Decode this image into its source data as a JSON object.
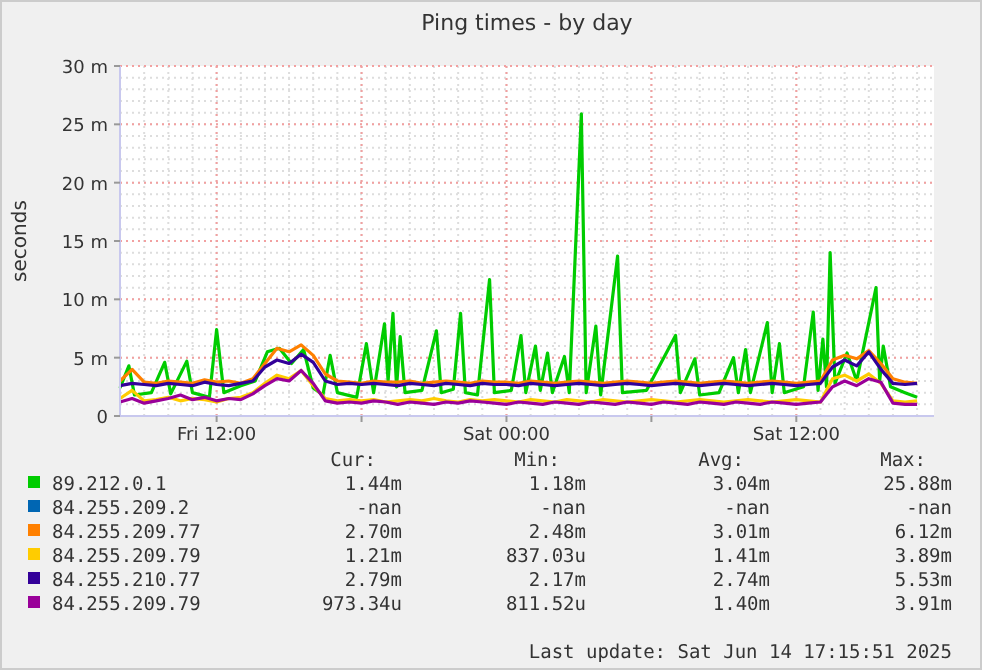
{
  "chart_data": {
    "type": "line",
    "title": "Ping times - by day",
    "ylabel": "seconds",
    "grid": true,
    "legend": "bottom",
    "xlim": [
      "2025-06-13T08:00",
      "2025-06-14T17:42"
    ],
    "ylim": [
      0,
      30
    ],
    "xticks": [
      {
        "value": "2025-06-13T12:00",
        "label": "Fri 12:00"
      },
      {
        "value": "2025-06-13T18:00",
        "label": null
      },
      {
        "value": "2025-06-14T00:00",
        "label": "Sat 00:00"
      },
      {
        "value": "2025-06-14T06:00",
        "label": null
      },
      {
        "value": "2025-06-14T12:00",
        "label": "Sat 12:00"
      }
    ],
    "yticks": [
      0,
      {
        "value": 5,
        "label": "5 m"
      },
      {
        "value": 10,
        "label": "10 m"
      },
      {
        "value": 15,
        "label": "15 m"
      },
      {
        "value": 20,
        "label": "20 m"
      },
      {
        "value": 25,
        "label": "25 m"
      },
      {
        "value": 30,
        "label": "30 m"
      }
    ],
    "x": [
      "2025-06-13T08:00",
      "2025-06-13T08:30",
      "2025-06-13T09:00",
      "2025-06-13T09:30",
      "2025-06-13T10:00",
      "2025-06-13T10:30",
      "2025-06-13T11:00",
      "2025-06-13T11:30",
      "2025-06-13T12:00",
      "2025-06-13T12:30",
      "2025-06-13T13:00",
      "2025-06-13T13:30",
      "2025-06-13T14:00",
      "2025-06-13T14:30",
      "2025-06-13T15:00",
      "2025-06-13T15:30",
      "2025-06-13T16:00",
      "2025-06-13T16:30",
      "2025-06-13T17:00",
      "2025-06-13T17:30",
      "2025-06-13T18:00",
      "2025-06-13T18:30",
      "2025-06-13T19:00",
      "2025-06-13T19:30",
      "2025-06-13T20:00",
      "2025-06-13T20:30",
      "2025-06-13T21:00",
      "2025-06-13T21:30",
      "2025-06-13T22:00",
      "2025-06-13T22:30",
      "2025-06-13T23:00",
      "2025-06-13T23:30",
      "2025-06-14T00:00",
      "2025-06-14T00:30",
      "2025-06-14T01:00",
      "2025-06-14T01:30",
      "2025-06-14T02:00",
      "2025-06-14T02:30",
      "2025-06-14T03:00",
      "2025-06-14T03:30",
      "2025-06-14T04:00",
      "2025-06-14T04:30",
      "2025-06-14T05:00",
      "2025-06-14T05:30",
      "2025-06-14T06:00",
      "2025-06-14T06:30",
      "2025-06-14T07:00",
      "2025-06-14T07:30",
      "2025-06-14T08:00",
      "2025-06-14T08:30",
      "2025-06-14T09:00",
      "2025-06-14T09:30",
      "2025-06-14T10:00",
      "2025-06-14T10:30",
      "2025-06-14T11:00",
      "2025-06-14T11:30",
      "2025-06-14T12:00",
      "2025-06-14T12:30",
      "2025-06-14T13:00",
      "2025-06-14T13:30",
      "2025-06-14T14:00",
      "2025-06-14T14:30",
      "2025-06-14T15:00",
      "2025-06-14T15:30",
      "2025-06-14T16:00",
      "2025-06-14T16:30",
      "2025-06-14T17:00"
    ],
    "series": [
      {
        "name": "89.212.0.1",
        "color": "#00cc00",
        "x": [
          "2025-06-13T08:00",
          "2025-06-13T08:22",
          "2025-06-13T08:36",
          "2025-06-13T09:18",
          "2025-06-13T09:51",
          "2025-06-13T10:06",
          "2025-06-13T10:46",
          "2025-06-13T11:00",
          "2025-06-13T11:42",
          "2025-06-13T12:00",
          "2025-06-13T12:18",
          "2025-06-13T13:00",
          "2025-06-13T13:36",
          "2025-06-13T14:06",
          "2025-06-13T14:36",
          "2025-06-13T15:06",
          "2025-06-13T15:36",
          "2025-06-13T16:00",
          "2025-06-13T16:24",
          "2025-06-13T16:42",
          "2025-06-13T17:00",
          "2025-06-13T17:48",
          "2025-06-13T18:12",
          "2025-06-13T18:30",
          "2025-06-13T18:57",
          "2025-06-13T19:06",
          "2025-06-13T19:18",
          "2025-06-13T19:27",
          "2025-06-13T19:36",
          "2025-06-13T19:48",
          "2025-06-13T20:30",
          "2025-06-13T21:06",
          "2025-06-13T21:18",
          "2025-06-13T21:48",
          "2025-06-13T22:06",
          "2025-06-13T22:18",
          "2025-06-13T22:48",
          "2025-06-13T23:18",
          "2025-06-13T23:30",
          "2025-06-14T00:12",
          "2025-06-14T00:36",
          "2025-06-14T00:48",
          "2025-06-14T01:12",
          "2025-06-14T01:24",
          "2025-06-14T01:42",
          "2025-06-14T01:54",
          "2025-06-14T02:24",
          "2025-06-14T02:36",
          "2025-06-14T03:06",
          "2025-06-14T03:18",
          "2025-06-14T03:42",
          "2025-06-14T03:54",
          "2025-06-14T04:36",
          "2025-06-14T04:48",
          "2025-06-14T05:48",
          "2025-06-14T07:00",
          "2025-06-14T07:12",
          "2025-06-14T07:48",
          "2025-06-14T08:00",
          "2025-06-14T08:48",
          "2025-06-14T09:24",
          "2025-06-14T09:36",
          "2025-06-14T09:54",
          "2025-06-14T10:06",
          "2025-06-14T10:48",
          "2025-06-14T11:00",
          "2025-06-14T11:18",
          "2025-06-14T11:30",
          "2025-06-14T12:18",
          "2025-06-14T12:42",
          "2025-06-14T12:54",
          "2025-06-14T13:06",
          "2025-06-14T13:15",
          "2025-06-14T13:24",
          "2025-06-14T13:36",
          "2025-06-14T14:06",
          "2025-06-14T14:30",
          "2025-06-14T15:18",
          "2025-06-14T15:27",
          "2025-06-14T15:36",
          "2025-06-14T15:54",
          "2025-06-14T16:30",
          "2025-06-14T17:00"
        ],
        "values": [
          2.4,
          4.3,
          1.8,
          2.0,
          4.6,
          1.9,
          4.7,
          2.0,
          1.6,
          7.4,
          2.0,
          2.6,
          3.0,
          5.5,
          5.8,
          4.5,
          5.7,
          2.4,
          1.8,
          5.2,
          2.0,
          1.6,
          6.2,
          2.0,
          7.9,
          3.0,
          8.8,
          2.5,
          6.8,
          2.0,
          2.2,
          7.3,
          2.0,
          2.3,
          8.8,
          2.0,
          1.8,
          11.7,
          2.0,
          2.2,
          6.9,
          2.0,
          6.0,
          2.2,
          5.4,
          2.0,
          5.1,
          2.0,
          25.9,
          2.0,
          7.7,
          1.8,
          13.7,
          2.0,
          2.2,
          6.9,
          2.0,
          4.9,
          1.8,
          2.0,
          5.0,
          2.0,
          5.7,
          2.0,
          8.0,
          2.0,
          6.2,
          2.0,
          2.5,
          8.9,
          2.2,
          6.6,
          2.5,
          14.0,
          2.8,
          5.4,
          3.0,
          11.0,
          3.0,
          6.0,
          2.5,
          2.0,
          1.6
        ]
      },
      {
        "name": "84.255.209.2",
        "color": "#0066b3",
        "values": [
          null,
          null,
          null,
          null,
          null,
          null,
          null,
          null,
          null,
          null,
          null,
          null,
          null,
          null,
          null,
          null,
          null,
          null,
          null,
          null,
          null,
          null,
          null,
          null,
          null,
          null,
          null,
          null,
          null,
          null,
          null,
          null,
          null,
          null,
          null,
          null,
          null,
          null,
          null,
          null,
          null,
          null,
          null,
          null,
          null,
          null,
          null,
          null,
          null,
          null,
          null,
          null,
          null,
          null,
          null,
          null,
          null,
          null,
          null,
          null,
          null,
          null,
          null,
          null,
          null,
          null,
          null
        ]
      },
      {
        "name": "84.255.209.77",
        "color": "#ff8000",
        "values": [
          3.0,
          4.0,
          2.9,
          2.8,
          3.0,
          2.9,
          2.8,
          3.1,
          2.9,
          3.0,
          2.8,
          3.2,
          4.5,
          5.8,
          5.5,
          6.1,
          5.2,
          3.6,
          3.0,
          2.9,
          2.8,
          3.0,
          2.9,
          2.9,
          3.0,
          2.8,
          2.9,
          3.0,
          2.9,
          2.8,
          3.0,
          2.9,
          2.9,
          2.8,
          3.0,
          2.9,
          2.8,
          2.9,
          3.0,
          2.9,
          2.8,
          2.9,
          3.0,
          2.9,
          2.8,
          2.9,
          3.0,
          2.9,
          2.8,
          2.9,
          3.0,
          2.9,
          2.8,
          2.9,
          3.0,
          2.9,
          2.8,
          2.9,
          3.0,
          4.8,
          5.2,
          4.9,
          5.6,
          4.5,
          3.2,
          2.9,
          2.8
        ]
      },
      {
        "name": "84.255.209.79",
        "color": "#ffcc00",
        "values": [
          1.5,
          2.2,
          1.3,
          1.4,
          1.6,
          1.3,
          1.5,
          1.4,
          1.2,
          1.5,
          1.6,
          2.0,
          2.8,
          3.5,
          3.2,
          3.9,
          2.6,
          1.5,
          1.3,
          1.4,
          1.3,
          1.4,
          1.2,
          1.3,
          1.4,
          1.3,
          1.5,
          1.3,
          1.2,
          1.4,
          1.3,
          1.4,
          1.3,
          1.2,
          1.4,
          1.3,
          1.2,
          1.4,
          1.3,
          1.2,
          1.4,
          1.3,
          1.2,
          1.3,
          1.4,
          1.3,
          1.2,
          1.3,
          1.4,
          1.3,
          1.2,
          1.3,
          1.4,
          1.3,
          1.2,
          1.3,
          1.4,
          1.3,
          1.2,
          3.2,
          3.5,
          3.0,
          3.6,
          2.8,
          1.3,
          1.2,
          1.3
        ]
      },
      {
        "name": "84.255.210.77",
        "color": "#330099",
        "values": [
          2.6,
          2.8,
          2.7,
          2.6,
          2.8,
          2.7,
          2.6,
          2.9,
          2.7,
          2.6,
          2.8,
          3.0,
          4.2,
          4.8,
          4.5,
          5.3,
          4.6,
          3.0,
          2.7,
          2.8,
          2.7,
          2.8,
          2.7,
          2.6,
          2.8,
          2.7,
          2.6,
          2.8,
          2.7,
          2.6,
          2.8,
          2.7,
          2.7,
          2.6,
          2.8,
          2.7,
          2.6,
          2.7,
          2.8,
          2.7,
          2.6,
          2.7,
          2.8,
          2.7,
          2.6,
          2.7,
          2.8,
          2.7,
          2.6,
          2.7,
          2.8,
          2.7,
          2.6,
          2.7,
          2.8,
          2.7,
          2.6,
          2.7,
          2.8,
          4.2,
          4.8,
          4.3,
          5.5,
          4.0,
          2.8,
          2.7,
          2.8
        ]
      },
      {
        "name": "84.255.209.79",
        "color": "#990099",
        "values": [
          1.2,
          1.5,
          1.1,
          1.3,
          1.5,
          1.8,
          1.4,
          1.6,
          1.3,
          1.5,
          1.4,
          1.9,
          2.6,
          3.2,
          3.0,
          3.9,
          2.8,
          1.3,
          1.1,
          1.2,
          1.1,
          1.3,
          1.2,
          1.0,
          1.2,
          1.1,
          1.0,
          1.2,
          1.1,
          1.3,
          1.2,
          1.1,
          1.0,
          1.2,
          1.1,
          1.0,
          1.2,
          1.1,
          1.0,
          1.2,
          1.1,
          1.0,
          1.2,
          1.1,
          1.0,
          1.2,
          1.1,
          1.0,
          1.2,
          1.1,
          1.0,
          1.2,
          1.1,
          1.0,
          1.2,
          1.1,
          1.0,
          1.1,
          1.2,
          2.5,
          3.0,
          2.6,
          3.2,
          2.9,
          1.1,
          1.0,
          1.0
        ]
      }
    ],
    "annotations": [
      "Cur:",
      "Min:",
      "Avg:",
      "Max:",
      "1.44m",
      "1.18m",
      "3.04m",
      "25.88m",
      "-nan",
      "-nan",
      "-nan",
      "-nan",
      "2.70m",
      "2.48m",
      "3.01m",
      "6.12m",
      "1.21m",
      "837.03u",
      "1.41m",
      "3.89m",
      "2.79m",
      "2.17m",
      "2.74m",
      "5.53m",
      "973.34u",
      "811.52u",
      "1.40m",
      "3.91m",
      "Last update: Sat Jun 14 17:15:51 2025"
    ]
  }
}
